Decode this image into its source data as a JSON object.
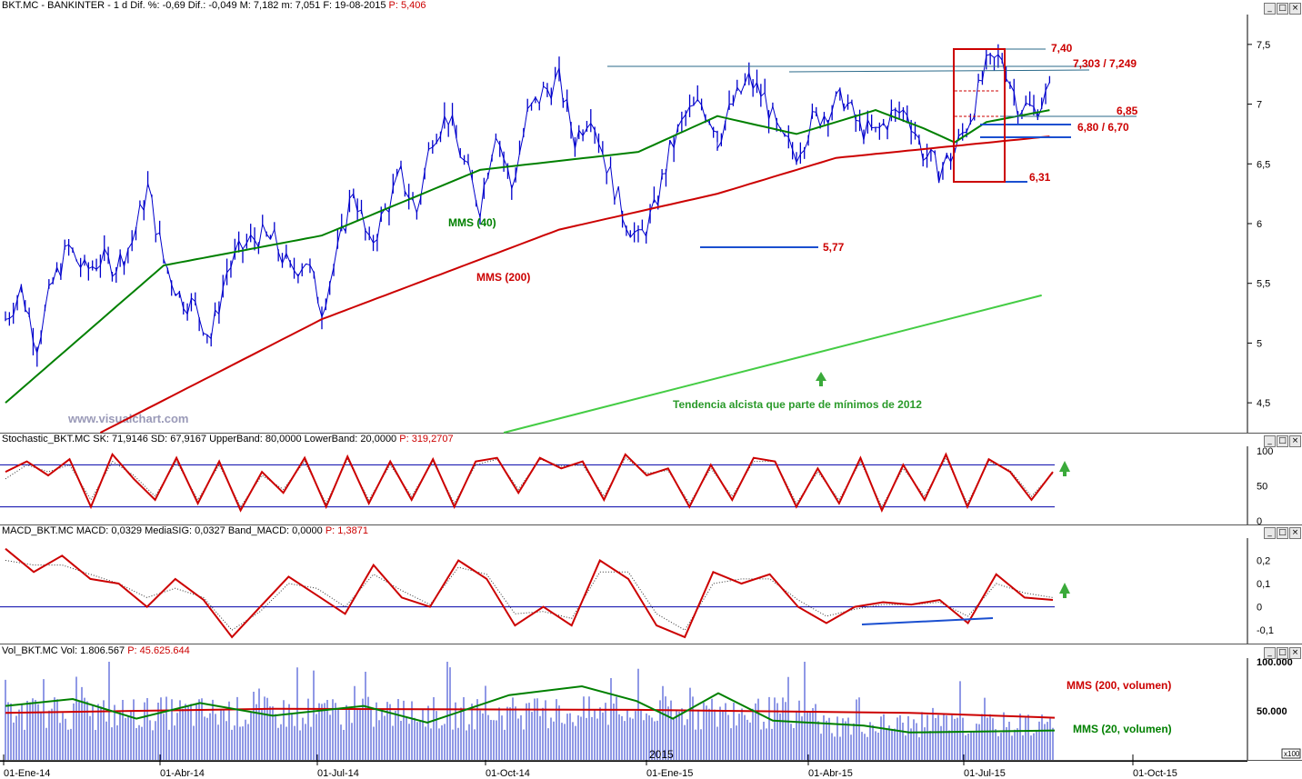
{
  "colors": {
    "price": "#0000cc",
    "ma_green": "#008000",
    "ma_red": "#cc0000",
    "annot_red": "#cc0000",
    "annot_blue": "#1a4fd0",
    "trend": "#44cc44",
    "header_red": "#cc0000",
    "volume": "#2233cc",
    "watermark": "#9a9ab8"
  },
  "headers": {
    "price": {
      "prefix": "BKT.MC - BANKINTER - 1 d Dif. %: -0,69 Dif.: -0,049 M: 7,182 m: 7,051 F: 19-08-2015",
      "highlight": "P: 5,406"
    },
    "stochastic": {
      "prefix": "Stochastic_BKT.MC SK: 71,9146 SD: 67,9167 UpperBand: 80,0000 LowerBand: 20,0000",
      "highlight": "P: 319,2707"
    },
    "macd": {
      "prefix": "MACD_BKT.MC MACD: 0,0329 MediaSIG: 0,0327 Band_MACD: 0,0000",
      "highlight": "P: 1,3871"
    },
    "volume": {
      "prefix": "Vol_BKT.MC Vol: 1.806.567",
      "highlight": "P: 45.625.644"
    }
  },
  "watermark": "www.visualchart.com",
  "chart_data": [
    {
      "type": "line",
      "title": "BKT.MC - BANKINTER - 1 d",
      "y_ticks": [
        "7,5",
        "7",
        "6,5",
        "6",
        "5,5",
        "5",
        "4,5"
      ],
      "ylim": [
        4.25,
        7.75
      ],
      "x_ticks": [
        "01-Ene-14",
        "01-Abr-14",
        "01-Jul-14",
        "01-Oct-14",
        "01-Ene-15",
        "01-Abr-15",
        "01-Jul-15",
        "01-Oct-15"
      ],
      "price_series": {
        "name": "BKT.MC",
        "x": [
          0,
          2,
          4,
          6,
          8,
          10,
          12,
          14,
          16,
          18,
          20,
          22,
          24,
          26,
          28,
          30,
          32,
          34,
          36,
          38,
          40,
          42,
          44,
          46,
          48,
          50,
          52,
          54,
          56,
          58,
          60,
          62,
          64,
          66,
          68,
          70,
          72,
          74,
          76,
          78,
          80,
          82,
          84,
          86,
          88,
          90
        ],
        "values": [
          5.2,
          5.45,
          5.0,
          5.5,
          5.8,
          5.6,
          5.7,
          5.65,
          5.85,
          6.3,
          5.7,
          5.4,
          5.3,
          5.05,
          5.6,
          5.8,
          5.9,
          5.85,
          5.6,
          5.7,
          5.3,
          5.75,
          6.3,
          5.8,
          6.1,
          6.4,
          6.1,
          6.75,
          6.9,
          6.5,
          6.15,
          6.8,
          6.3,
          6.9,
          7.1,
          7.2,
          6.7,
          6.95,
          6.5,
          6.1,
          5.85,
          6.1,
          6.6,
          6.9,
          7.0,
          6.8
        ]
      },
      "price_series_2": {
        "x": [
          90,
          92,
          94,
          96,
          98,
          100,
          102,
          104,
          106,
          108,
          110,
          112,
          114,
          116,
          118,
          120,
          122,
          124,
          126,
          128,
          130,
          132
        ],
        "values": [
          6.7,
          7.0,
          7.2,
          7.05,
          6.7,
          6.6,
          6.85,
          6.95,
          7.05,
          6.8,
          6.75,
          6.9,
          6.95,
          6.6,
          6.45,
          6.6,
          6.9,
          7.3,
          7.4,
          7.0,
          6.95,
          7.1
        ]
      },
      "series": [
        {
          "name": "MMS (40)",
          "x": [
            0,
            20,
            40,
            60,
            80,
            90,
            100,
            110,
            116,
            120,
            124,
            132
          ],
          "values": [
            4.5,
            5.65,
            5.9,
            6.45,
            6.6,
            6.9,
            6.75,
            6.95,
            6.8,
            6.68,
            6.85,
            6.95
          ]
        },
        {
          "name": "MMS (200)",
          "x": [
            12,
            40,
            70,
            90,
            105,
            120,
            132
          ],
          "values": [
            4.25,
            5.2,
            5.95,
            6.25,
            6.55,
            6.65,
            6.73
          ]
        }
      ],
      "levels": [
        {
          "label": "7,40",
          "value": 7.4
        },
        {
          "label": "7,303 / 7,249",
          "value": 7.28
        },
        {
          "label": "6,85",
          "value": 6.85
        },
        {
          "label": "6,80 / 6,70",
          "value": 6.75
        },
        {
          "label": "6,31",
          "value": 6.31
        },
        {
          "label": "5,77",
          "value": 5.77
        }
      ],
      "trend_annotation": "Tendencia alcista que parte de mínimos de 2012",
      "trend_line": {
        "x0": 63,
        "y0": 4.25,
        "x1": 131,
        "y1": 5.4
      }
    },
    {
      "type": "line",
      "title": "Stochastic_BKT.MC",
      "y_ticks": [
        "100",
        "50",
        "0"
      ],
      "ylim": [
        0,
        100
      ],
      "bands": [
        80,
        20
      ],
      "sk": [
        70,
        85,
        65,
        88,
        20,
        95,
        60,
        30,
        90,
        25,
        85,
        15,
        70,
        40,
        90,
        20,
        92,
        25,
        85,
        30,
        88,
        20,
        85,
        90,
        40,
        90,
        75,
        85,
        30,
        95,
        65,
        75,
        20,
        80,
        30,
        90,
        85,
        20,
        75,
        25,
        90,
        15,
        80,
        30,
        95,
        20,
        88,
        70,
        30,
        70
      ],
      "sd": [
        60,
        80,
        70,
        80,
        30,
        85,
        65,
        35,
        85,
        30,
        80,
        20,
        65,
        45,
        85,
        25,
        88,
        30,
        80,
        35,
        85,
        25,
        80,
        88,
        45,
        88,
        78,
        80,
        35,
        90,
        68,
        72,
        25,
        75,
        35,
        85,
        85,
        25,
        70,
        30,
        85,
        20,
        75,
        35,
        90,
        25,
        85,
        72,
        35,
        68
      ]
    },
    {
      "type": "line",
      "title": "MACD_BKT.MC",
      "y_ticks": [
        "0,2",
        "0,1",
        "0",
        "-0,1"
      ],
      "ylim": [
        -0.15,
        0.28
      ],
      "macd": [
        0.25,
        0.15,
        0.22,
        0.12,
        0.1,
        0.0,
        0.12,
        0.03,
        -0.13,
        0.0,
        0.13,
        0.05,
        -0.03,
        0.18,
        0.04,
        0.0,
        0.2,
        0.12,
        -0.08,
        0.0,
        -0.08,
        0.2,
        0.12,
        -0.08,
        -0.13,
        0.15,
        0.1,
        0.14,
        0.0,
        -0.07,
        0.0,
        0.02,
        0.01,
        0.03,
        -0.07,
        0.14,
        0.04,
        0.03
      ],
      "signal": [
        0.2,
        0.18,
        0.18,
        0.14,
        0.1,
        0.04,
        0.08,
        0.04,
        -0.1,
        -0.02,
        0.1,
        0.08,
        0.0,
        0.14,
        0.07,
        0.01,
        0.17,
        0.14,
        -0.03,
        -0.02,
        -0.05,
        0.15,
        0.15,
        -0.03,
        -0.1,
        0.1,
        0.12,
        0.12,
        0.03,
        -0.04,
        -0.01,
        0.01,
        0.01,
        0.02,
        -0.04,
        0.1,
        0.06,
        0.04
      ]
    },
    {
      "type": "bar",
      "title": "Vol_BKT.MC",
      "y_ticks": [
        "100.000",
        "50.000"
      ],
      "ylim": [
        0,
        100000
      ],
      "ma_labels": [
        "MMS (200, volumen)",
        "MMS (20, volumen)"
      ],
      "scale_badge": "x100",
      "year_label": "2015"
    }
  ]
}
